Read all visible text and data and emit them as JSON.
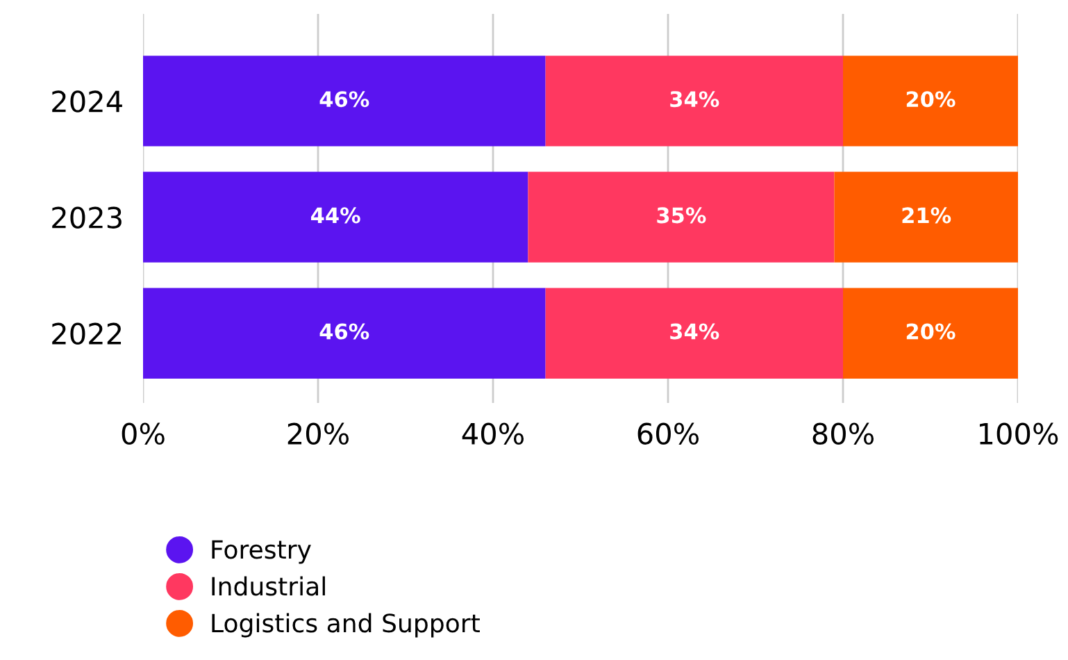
{
  "chart_data": {
    "type": "bar",
    "orientation": "horizontal",
    "stacked": true,
    "categories": [
      "2024",
      "2023",
      "2022"
    ],
    "series": [
      {
        "name": "Forestry",
        "color": "#5b14f0",
        "values": [
          46,
          44,
          46
        ]
      },
      {
        "name": "Industrial",
        "color": "#ff3860",
        "values": [
          34,
          35,
          34
        ]
      },
      {
        "name": "Logistics and Support",
        "color": "#ff5c00",
        "values": [
          20,
          21,
          20
        ]
      }
    ],
    "xlim": [
      0,
      100
    ],
    "xticks": [
      {
        "value": 0,
        "label": "0%"
      },
      {
        "value": 20,
        "label": "20%"
      },
      {
        "value": 40,
        "label": "40%"
      },
      {
        "value": 60,
        "label": "60%"
      },
      {
        "value": 80,
        "label": "80%"
      },
      {
        "value": 100,
        "label": "100%"
      }
    ],
    "value_labels": [
      [
        "46%",
        "44%",
        "46%"
      ],
      [
        "34%",
        "35%",
        "34%"
      ],
      [
        "20%",
        "21%",
        "20%"
      ]
    ],
    "grid": "x",
    "legend": "bottom",
    "marker": "circle"
  }
}
